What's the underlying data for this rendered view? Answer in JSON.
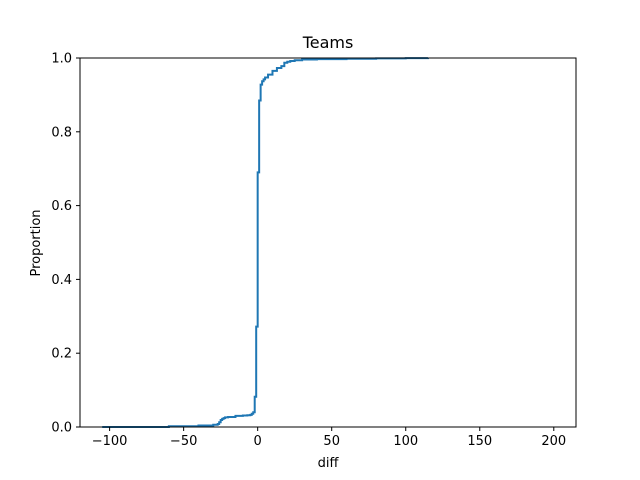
{
  "chart_data": {
    "type": "line",
    "title": "Teams",
    "xlabel": "diff",
    "ylabel": "Proportion",
    "xlim": [
      -120,
      215
    ],
    "ylim": [
      0,
      1
    ],
    "xticks": [
      -100,
      -50,
      0,
      50,
      100,
      150,
      200
    ],
    "xtick_labels": [
      "−100",
      "−50",
      "0",
      "50",
      "100",
      "150",
      "200"
    ],
    "yticks": [
      0,
      0.2,
      0.4,
      0.6,
      0.8,
      1.0
    ],
    "ytick_labels": [
      "0.0",
      "0.2",
      "0.4",
      "0.6",
      "0.8",
      "1.0"
    ],
    "grid": false,
    "line_color": "#1f77b4",
    "series": [
      {
        "x": [
          -105,
          -60,
          -40,
          -30,
          -27,
          -26,
          -25,
          -24,
          -23,
          -22,
          -20,
          -15,
          -10,
          -7,
          -5,
          -4,
          -3,
          -2,
          -1,
          0,
          1,
          2,
          3,
          4,
          5,
          7,
          10,
          13,
          16,
          18,
          20,
          22,
          25,
          30,
          40,
          60,
          80,
          100,
          115
        ],
        "y": [
          0.0,
          0.002,
          0.004,
          0.006,
          0.008,
          0.013,
          0.019,
          0.022,
          0.024,
          0.026,
          0.027,
          0.03,
          0.031,
          0.032,
          0.033,
          0.036,
          0.04,
          0.082,
          0.272,
          0.69,
          0.885,
          0.928,
          0.937,
          0.942,
          0.947,
          0.955,
          0.965,
          0.973,
          0.978,
          0.987,
          0.99,
          0.992,
          0.994,
          0.996,
          0.997,
          0.998,
          0.999,
          0.9995,
          1.0
        ]
      }
    ]
  }
}
